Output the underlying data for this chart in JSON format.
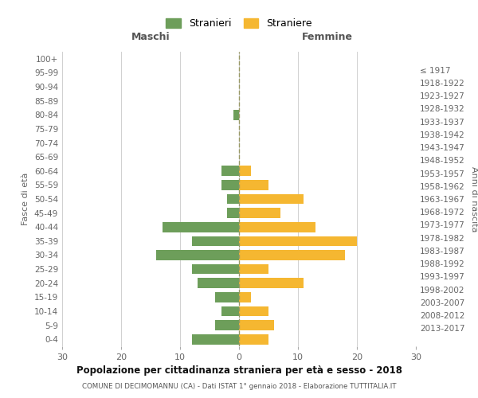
{
  "age_groups_bottom_to_top": [
    "0-4",
    "5-9",
    "10-14",
    "15-19",
    "20-24",
    "25-29",
    "30-34",
    "35-39",
    "40-44",
    "45-49",
    "50-54",
    "55-59",
    "60-64",
    "65-69",
    "70-74",
    "75-79",
    "80-84",
    "85-89",
    "90-94",
    "95-99",
    "100+"
  ],
  "birth_years_bottom_to_top": [
    "2013-2017",
    "2008-2012",
    "2003-2007",
    "1998-2002",
    "1993-1997",
    "1988-1992",
    "1983-1987",
    "1978-1982",
    "1973-1977",
    "1968-1972",
    "1963-1967",
    "1958-1962",
    "1953-1957",
    "1948-1952",
    "1943-1947",
    "1938-1942",
    "1933-1937",
    "1928-1932",
    "1923-1927",
    "1918-1922",
    "≤ 1917"
  ],
  "maschi_bottom_to_top": [
    8,
    4,
    3,
    4,
    7,
    8,
    14,
    8,
    13,
    2,
    2,
    3,
    3,
    0,
    0,
    0,
    1,
    0,
    0,
    0,
    0
  ],
  "femmine_bottom_to_top": [
    5,
    6,
    5,
    2,
    11,
    5,
    18,
    20,
    13,
    7,
    11,
    5,
    2,
    0,
    0,
    0,
    0,
    0,
    0,
    0,
    0
  ],
  "color_maschi": "#6d9e5a",
  "color_femmine": "#f5b731",
  "title": "Popolazione per cittadinanza straniera per età e sesso - 2018",
  "subtitle": "COMUNE DI DECIMOMANNU (CA) - Dati ISTAT 1° gennaio 2018 - Elaborazione TUTTITALIA.IT",
  "xlabel_left": "Maschi",
  "xlabel_right": "Femmine",
  "ylabel_left": "Fasce di età",
  "ylabel_right": "Anni di nascita",
  "legend_maschi": "Stranieri",
  "legend_femmine": "Straniere",
  "xlim": 30,
  "background_color": "#ffffff",
  "grid_color": "#d0d0d0"
}
